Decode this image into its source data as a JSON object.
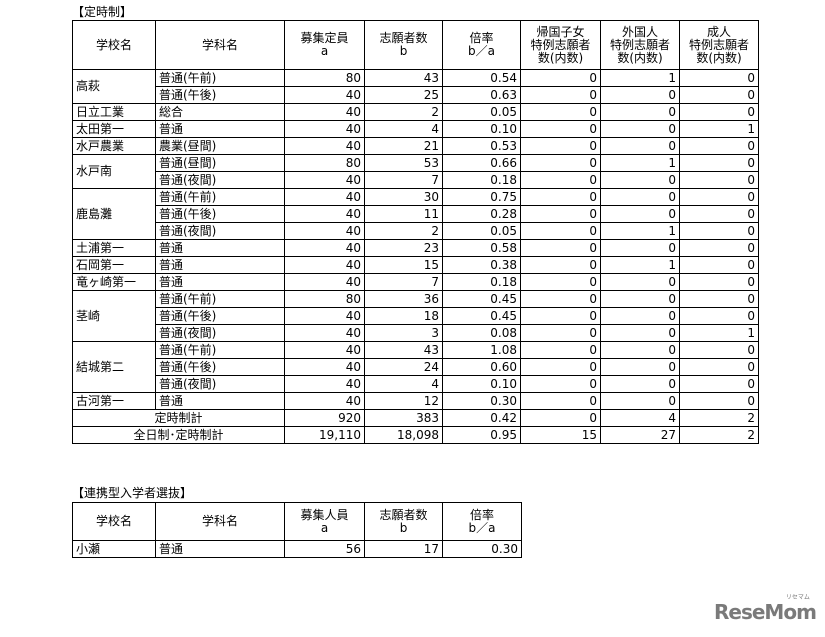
{
  "teiji": {
    "title": "【定時制】",
    "headers": [
      "学校名",
      "学科名",
      "募集定員\na",
      "志願者数\nb",
      "倍率\nb／a",
      "帰国子女\n特例志願者\n数(内数)",
      "外国人\n特例志願者\n数(内数)",
      "成人\n特例志願者\n数(内数)"
    ],
    "schools": [
      {
        "name": "高萩",
        "rows": [
          {
            "dept": "普通(午前)",
            "cap": "80",
            "app": "43",
            "ratio": "0.54",
            "kikoku": "0",
            "gaikoku": "1",
            "seijin": "0"
          },
          {
            "dept": "普通(午後)",
            "cap": "40",
            "app": "25",
            "ratio": "0.63",
            "kikoku": "0",
            "gaikoku": "0",
            "seijin": "0"
          }
        ]
      },
      {
        "name": "日立工業",
        "rows": [
          {
            "dept": "総合",
            "cap": "40",
            "app": "2",
            "ratio": "0.05",
            "kikoku": "0",
            "gaikoku": "0",
            "seijin": "0"
          }
        ]
      },
      {
        "name": "太田第一",
        "rows": [
          {
            "dept": "普通",
            "cap": "40",
            "app": "4",
            "ratio": "0.10",
            "kikoku": "0",
            "gaikoku": "0",
            "seijin": "1"
          }
        ]
      },
      {
        "name": "水戸農業",
        "rows": [
          {
            "dept": "農業(昼間)",
            "cap": "40",
            "app": "21",
            "ratio": "0.53",
            "kikoku": "0",
            "gaikoku": "0",
            "seijin": "0"
          }
        ]
      },
      {
        "name": "水戸南",
        "rows": [
          {
            "dept": "普通(昼間)",
            "cap": "80",
            "app": "53",
            "ratio": "0.66",
            "kikoku": "0",
            "gaikoku": "1",
            "seijin": "0"
          },
          {
            "dept": "普通(夜間)",
            "cap": "40",
            "app": "7",
            "ratio": "0.18",
            "kikoku": "0",
            "gaikoku": "0",
            "seijin": "0"
          }
        ]
      },
      {
        "name": "鹿島灘",
        "rows": [
          {
            "dept": "普通(午前)",
            "cap": "40",
            "app": "30",
            "ratio": "0.75",
            "kikoku": "0",
            "gaikoku": "0",
            "seijin": "0"
          },
          {
            "dept": "普通(午後)",
            "cap": "40",
            "app": "11",
            "ratio": "0.28",
            "kikoku": "0",
            "gaikoku": "0",
            "seijin": "0"
          },
          {
            "dept": "普通(夜間)",
            "cap": "40",
            "app": "2",
            "ratio": "0.05",
            "kikoku": "0",
            "gaikoku": "1",
            "seijin": "0"
          }
        ]
      },
      {
        "name": "土浦第一",
        "rows": [
          {
            "dept": "普通",
            "cap": "40",
            "app": "23",
            "ratio": "0.58",
            "kikoku": "0",
            "gaikoku": "0",
            "seijin": "0"
          }
        ]
      },
      {
        "name": "石岡第一",
        "rows": [
          {
            "dept": "普通",
            "cap": "40",
            "app": "15",
            "ratio": "0.38",
            "kikoku": "0",
            "gaikoku": "1",
            "seijin": "0"
          }
        ]
      },
      {
        "name": "竜ヶ崎第一",
        "rows": [
          {
            "dept": "普通",
            "cap": "40",
            "app": "7",
            "ratio": "0.18",
            "kikoku": "0",
            "gaikoku": "0",
            "seijin": "0"
          }
        ]
      },
      {
        "name": "茎崎",
        "rows": [
          {
            "dept": "普通(午前)",
            "cap": "80",
            "app": "36",
            "ratio": "0.45",
            "kikoku": "0",
            "gaikoku": "0",
            "seijin": "0"
          },
          {
            "dept": "普通(午後)",
            "cap": "40",
            "app": "18",
            "ratio": "0.45",
            "kikoku": "0",
            "gaikoku": "0",
            "seijin": "0"
          },
          {
            "dept": "普通(夜間)",
            "cap": "40",
            "app": "3",
            "ratio": "0.08",
            "kikoku": "0",
            "gaikoku": "0",
            "seijin": "1"
          }
        ]
      },
      {
        "name": "結城第二",
        "rows": [
          {
            "dept": "普通(午前)",
            "cap": "40",
            "app": "43",
            "ratio": "1.08",
            "kikoku": "0",
            "gaikoku": "0",
            "seijin": "0"
          },
          {
            "dept": "普通(午後)",
            "cap": "40",
            "app": "24",
            "ratio": "0.60",
            "kikoku": "0",
            "gaikoku": "0",
            "seijin": "0"
          },
          {
            "dept": "普通(夜間)",
            "cap": "40",
            "app": "4",
            "ratio": "0.10",
            "kikoku": "0",
            "gaikoku": "0",
            "seijin": "0"
          }
        ]
      },
      {
        "name": "古河第一",
        "rows": [
          {
            "dept": "普通",
            "cap": "40",
            "app": "12",
            "ratio": "0.30",
            "kikoku": "0",
            "gaikoku": "0",
            "seijin": "0"
          }
        ]
      }
    ],
    "totals": [
      {
        "label": "定時制計",
        "cap": "920",
        "app": "383",
        "ratio": "0.42",
        "kikoku": "0",
        "gaikoku": "4",
        "seijin": "2"
      },
      {
        "label": "全日制･定時制計",
        "cap": "19,110",
        "app": "18,098",
        "ratio": "0.95",
        "kikoku": "15",
        "gaikoku": "27",
        "seijin": "2"
      }
    ]
  },
  "renkei": {
    "title": "【連携型入学者選抜】",
    "headers": [
      "学校名",
      "学科名",
      "募集人員\na",
      "志願者数\nb",
      "倍率\nb／a"
    ],
    "rows": [
      {
        "name": "小瀬",
        "dept": "普通",
        "cap": "56",
        "app": "17",
        "ratio": "0.30"
      }
    ]
  },
  "logo": {
    "text": "ReseMom",
    "sub": "リセマム"
  }
}
